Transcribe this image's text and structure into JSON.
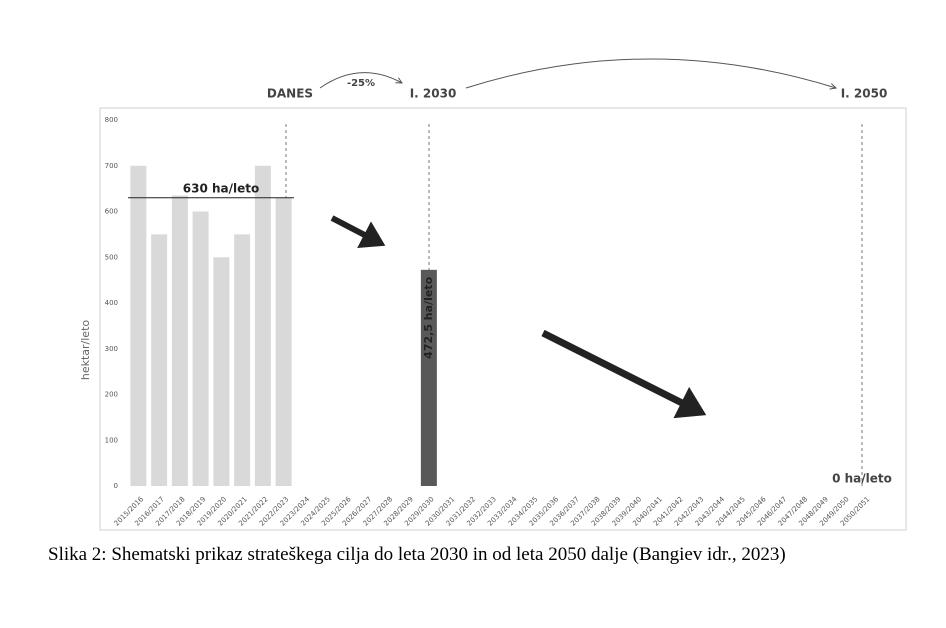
{
  "chart_data": {
    "type": "bar",
    "y_label": "hektar/leto",
    "categories": [
      "2015/2016",
      "2016/2017",
      "2017/2018",
      "2018/2019",
      "2019/2020",
      "2020/2021",
      "2021/2022",
      "2022/2023",
      "2023/2024",
      "2024/2025",
      "2025/2026",
      "2026/2027",
      "2027/2028",
      "2028/2029",
      "2029/2030",
      "2030/2031",
      "2031/2032",
      "2032/2033",
      "2033/2034",
      "2034/2035",
      "2035/2036",
      "2036/2037",
      "2037/2038",
      "2038/2039",
      "2039/2040",
      "2040/2041",
      "2041/2042",
      "2042/2043",
      "2043/2044",
      "2044/2045",
      "2045/2046",
      "2046/2047",
      "2047/2048",
      "2048/2049",
      "2049/2050",
      "2050/2051"
    ],
    "values": [
      700,
      550,
      635,
      600,
      500,
      550,
      700,
      630,
      null,
      null,
      null,
      null,
      null,
      null,
      472.5,
      null,
      null,
      null,
      null,
      null,
      null,
      null,
      null,
      null,
      null,
      null,
      null,
      null,
      null,
      null,
      null,
      null,
      null,
      null,
      null,
      null
    ],
    "value_labels": [
      null,
      null,
      null,
      null,
      null,
      null,
      null,
      null,
      null,
      null,
      null,
      null,
      null,
      null,
      "472,5 ha/leto",
      null,
      null,
      null,
      null,
      null,
      null,
      null,
      null,
      null,
      null,
      null,
      null,
      null,
      null,
      null,
      null,
      null,
      null,
      null,
      null,
      null
    ],
    "colors": [
      "#d9d9d9",
      "#d9d9d9",
      "#d9d9d9",
      "#d9d9d9",
      "#d9d9d9",
      "#d9d9d9",
      "#d9d9d9",
      "#d9d9d9",
      null,
      null,
      null,
      null,
      null,
      null,
      "#595959",
      null,
      null,
      null,
      null,
      null,
      null,
      null,
      null,
      null,
      null,
      null,
      null,
      null,
      null,
      null,
      null,
      null,
      null,
      null,
      null,
      null
    ],
    "reference_line": {
      "value": 630,
      "label": "630 ha/leto"
    },
    "annotations": [
      "DANES",
      "-25%",
      "I. 2030",
      "I. 2050",
      "0 ha/leto"
    ],
    "ylim": [
      0,
      800
    ],
    "yticks": [
      0,
      100,
      200,
      300,
      400,
      500,
      600,
      700,
      800
    ],
    "grid": false
  },
  "caption": "Slika 2: Shematski prikaz strateškega cilja do leta 2030 in od leta 2050 dalje (Bangiev idr., 2023)"
}
